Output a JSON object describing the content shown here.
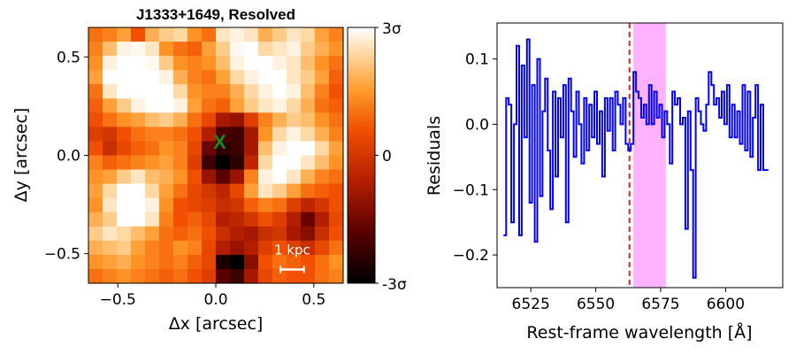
{
  "chart_data": [
    {
      "type": "heatmap",
      "title": "J1333+1649, Resolved",
      "xlabel": "Δx [arcsec]",
      "ylabel": "Δy [arcsec]",
      "xlim": [
        -0.65,
        0.65
      ],
      "ylim": [
        -0.65,
        0.65
      ],
      "xticks": [
        -0.5,
        0.0,
        0.5
      ],
      "xtick_labels": [
        "−0.5",
        "0.0",
        "0.5"
      ],
      "yticks": [
        0.5,
        0.0,
        -0.5
      ],
      "ytick_labels": [
        "0.5",
        "0.0",
        "−0.5"
      ],
      "colorbar": {
        "ticks": [
          "3σ",
          "0",
          "-3σ"
        ],
        "range": [
          -3,
          3
        ],
        "colormap": "gist_heat"
      },
      "marker": {
        "label": "X",
        "x": 0.02,
        "y": 0.07,
        "color": "#1a8a1a"
      },
      "scalebar": {
        "label": "1 kpc",
        "length_arcsec": 0.12,
        "x_center": 0.39,
        "y": -0.58
      },
      "grid_size": 18,
      "grid_values": [
        [
          1.0,
          1.2,
          1.6,
          0.6,
          1.8,
          2.2,
          2.4,
          1.4,
          1.0,
          2.6,
          2.8,
          2.6,
          1.8,
          2.2,
          2.6,
          2.4,
          1.6,
          1.2
        ],
        [
          1.2,
          2.0,
          2.8,
          2.9,
          2.6,
          1.4,
          1.0,
          0.8,
          1.6,
          2.2,
          2.9,
          3.0,
          2.4,
          2.6,
          2.8,
          2.2,
          1.8,
          1.4
        ],
        [
          1.4,
          2.8,
          3.0,
          3.0,
          2.9,
          2.2,
          1.4,
          1.2,
          1.4,
          2.0,
          2.8,
          3.0,
          3.0,
          2.8,
          2.6,
          2.0,
          1.4,
          1.0
        ],
        [
          1.6,
          3.0,
          3.0,
          3.0,
          3.0,
          2.8,
          1.8,
          1.2,
          1.0,
          1.6,
          2.4,
          2.8,
          3.0,
          3.0,
          2.6,
          2.2,
          1.6,
          0.8
        ],
        [
          1.0,
          2.6,
          3.0,
          3.0,
          3.0,
          3.0,
          2.4,
          1.4,
          1.2,
          1.2,
          1.8,
          2.4,
          2.8,
          3.0,
          2.8,
          2.0,
          1.2,
          0.6
        ],
        [
          0.8,
          1.6,
          2.2,
          2.8,
          3.0,
          3.0,
          2.8,
          1.6,
          1.0,
          0.8,
          1.6,
          2.2,
          2.6,
          2.8,
          2.4,
          1.8,
          1.0,
          0.8
        ],
        [
          0.6,
          1.0,
          1.4,
          1.6,
          2.0,
          2.2,
          1.8,
          1.0,
          0.4,
          -0.8,
          -1.0,
          0.2,
          1.2,
          1.8,
          2.2,
          2.0,
          1.4,
          1.0
        ],
        [
          0.2,
          0.0,
          0.6,
          1.0,
          1.2,
          1.2,
          1.0,
          0.6,
          -0.6,
          -2.0,
          -2.2,
          -0.8,
          1.4,
          2.4,
          2.8,
          2.4,
          1.8,
          1.2
        ],
        [
          0.6,
          -0.2,
          0.4,
          0.8,
          1.0,
          1.4,
          1.2,
          0.4,
          -1.6,
          -2.4,
          -2.2,
          -0.8,
          2.0,
          2.8,
          3.0,
          3.0,
          2.4,
          1.6
        ],
        [
          1.2,
          0.8,
          1.0,
          1.2,
          1.4,
          1.6,
          1.2,
          0.2,
          -2.2,
          -3.0,
          -2.4,
          -0.4,
          2.4,
          3.0,
          3.0,
          2.6,
          2.0,
          1.4
        ],
        [
          1.4,
          1.6,
          2.2,
          2.6,
          2.0,
          1.8,
          1.4,
          0.6,
          -1.0,
          -1.8,
          -1.0,
          1.2,
          2.8,
          3.0,
          2.6,
          1.8,
          1.2,
          1.0
        ],
        [
          1.6,
          2.4,
          3.0,
          3.0,
          2.4,
          1.6,
          1.0,
          0.4,
          0.0,
          -0.4,
          0.4,
          1.6,
          2.6,
          2.2,
          1.6,
          1.0,
          0.8,
          0.6
        ],
        [
          1.4,
          2.6,
          3.0,
          3.0,
          2.8,
          1.4,
          0.6,
          0.4,
          0.2,
          -0.2,
          0.0,
          0.8,
          1.2,
          1.0,
          0.2,
          -0.4,
          0.0,
          0.6
        ],
        [
          1.8,
          2.2,
          3.0,
          3.0,
          2.6,
          1.2,
          0.6,
          0.8,
          0.4,
          -0.6,
          -0.4,
          0.0,
          0.6,
          0.2,
          -0.6,
          -1.6,
          -0.6,
          0.4
        ],
        [
          2.2,
          2.6,
          2.4,
          2.0,
          1.6,
          1.0,
          0.8,
          1.0,
          0.6,
          -0.2,
          -0.6,
          -0.8,
          -0.2,
          0.0,
          -0.8,
          -1.2,
          -0.2,
          0.6
        ],
        [
          1.8,
          2.0,
          2.2,
          1.6,
          1.2,
          1.0,
          1.4,
          1.2,
          0.4,
          -0.6,
          -1.0,
          -0.6,
          0.2,
          0.6,
          0.2,
          -0.2,
          0.4,
          1.0
        ],
        [
          1.4,
          1.6,
          1.8,
          1.4,
          1.2,
          1.0,
          1.2,
          0.8,
          0.4,
          -2.6,
          -3.0,
          -1.2,
          0.6,
          1.0,
          0.8,
          0.6,
          1.0,
          1.4
        ],
        [
          1.0,
          1.2,
          1.4,
          1.2,
          1.0,
          0.8,
          1.0,
          0.6,
          0.2,
          -1.8,
          -2.2,
          -0.8,
          0.4,
          0.8,
          0.6,
          0.6,
          1.0,
          1.2
        ]
      ]
    },
    {
      "type": "line",
      "step": true,
      "xlabel": "Rest-frame wavelength [Å]",
      "ylabel": "Residuals",
      "xlim": [
        6512,
        6622
      ],
      "ylim": [
        -0.25,
        0.155
      ],
      "xticks": [
        6525,
        6550,
        6575,
        6600
      ],
      "xtick_labels": [
        "6525",
        "6550",
        "6575",
        "6600"
      ],
      "yticks": [
        0.1,
        0.0,
        -0.1,
        -0.2
      ],
      "ytick_labels": [
        "0.1",
        "0.0",
        "−0.1",
        "−0.2"
      ],
      "vline": {
        "x": 6563,
        "color": "#d62728",
        "style": "dashed"
      },
      "span": {
        "x0": 6564.5,
        "x1": 6577.0,
        "color": "#ff00ff",
        "alpha": 0.3
      },
      "series": [
        {
          "color": "#0000ff",
          "x": [
            6515,
            6516,
            6517,
            6518,
            6519,
            6520,
            6521,
            6522,
            6523,
            6524,
            6525,
            6526,
            6527,
            6528,
            6529,
            6530,
            6531,
            6532,
            6533,
            6534,
            6535,
            6536,
            6537,
            6538,
            6539,
            6540,
            6541,
            6542,
            6543,
            6544,
            6545,
            6546,
            6547,
            6548,
            6549,
            6550,
            6551,
            6552,
            6553,
            6554,
            6555,
            6556,
            6557,
            6558,
            6559,
            6560,
            6561,
            6562,
            6563,
            6564,
            6565,
            6566,
            6567,
            6568,
            6569,
            6570,
            6571,
            6572,
            6573,
            6574,
            6575,
            6576,
            6577,
            6578,
            6579,
            6580,
            6581,
            6582,
            6583,
            6584,
            6585,
            6586,
            6587,
            6588,
            6589,
            6590,
            6591,
            6592,
            6593,
            6594,
            6595,
            6596,
            6597,
            6598,
            6599,
            6600,
            6601,
            6602,
            6603,
            6604,
            6605,
            6606,
            6607,
            6608,
            6609,
            6610,
            6611,
            6612,
            6613,
            6614,
            6615,
            6616
          ],
          "y": [
            -0.17,
            0.04,
            0.03,
            -0.15,
            0.0,
            0.12,
            -0.17,
            0.09,
            -0.02,
            0.13,
            -0.12,
            0.06,
            -0.18,
            0.1,
            -0.11,
            0.02,
            0.07,
            -0.04,
            -0.13,
            0.05,
            -0.08,
            0.04,
            -0.02,
            0.06,
            -0.15,
            0.07,
            0.02,
            -0.05,
            0.05,
            0.0,
            -0.06,
            0.04,
            -0.04,
            0.03,
            -0.02,
            0.05,
            -0.03,
            0.02,
            -0.08,
            0.04,
            -0.01,
            0.04,
            -0.04,
            0.05,
            0.03,
            0.0,
            0.04,
            -0.03,
            -0.04,
            -0.03,
            0.08,
            0.05,
            0.04,
            0.01,
            0.03,
            0.0,
            0.06,
            0.0,
            0.05,
            0.01,
            0.03,
            -0.02,
            0.02,
            0.0,
            -0.06,
            0.05,
            0.03,
            0.04,
            0.0,
            0.01,
            -0.16,
            0.02,
            -0.07,
            -0.235,
            0.04,
            0.02,
            0.0,
            -0.01,
            0.03,
            0.08,
            0.06,
            0.03,
            0.04,
            0.01,
            0.05,
            0.0,
            0.06,
            -0.02,
            0.03,
            -0.02,
            0.02,
            -0.03,
            0.06,
            -0.04,
            0.05,
            -0.05,
            0.01,
            0.06,
            -0.07,
            0.03,
            -0.07,
            -0.07
          ]
        }
      ]
    }
  ]
}
